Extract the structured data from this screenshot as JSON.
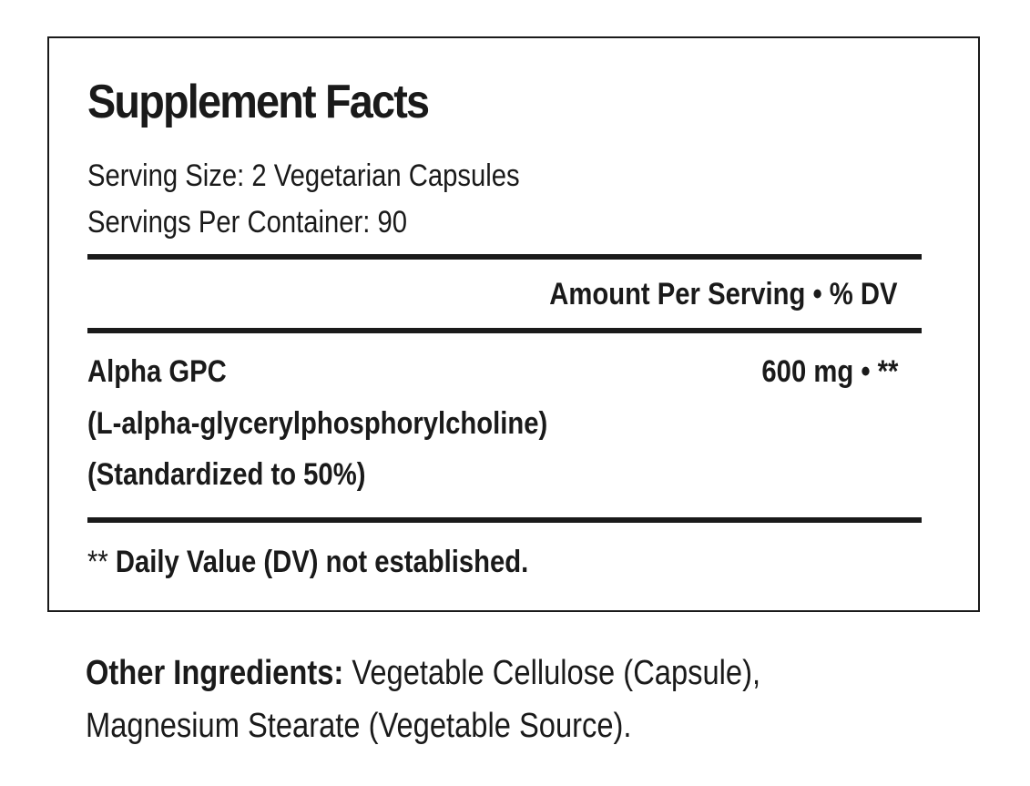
{
  "panel": {
    "title": "Supplement Facts",
    "serving_size": "Serving Size: 2 Vegetarian Capsules",
    "servings_per_container": "Servings Per Container: 90",
    "column_header": "Amount Per Serving • % DV",
    "ingredient": {
      "name": "Alpha GPC",
      "chemical_name": "(L-alpha-glycerylphosphorylcholine)",
      "standardization": "(Standardized to 50%)",
      "amount": "600 mg • **"
    },
    "footnote": {
      "mark": "**",
      "text": "Daily Value (DV) not established."
    }
  },
  "other_ingredients": {
    "label": "Other Ingredients:",
    "line1": "Vegetable Cellulose (Capsule),",
    "line2": "Magnesium Stearate (Vegetable Source)."
  }
}
